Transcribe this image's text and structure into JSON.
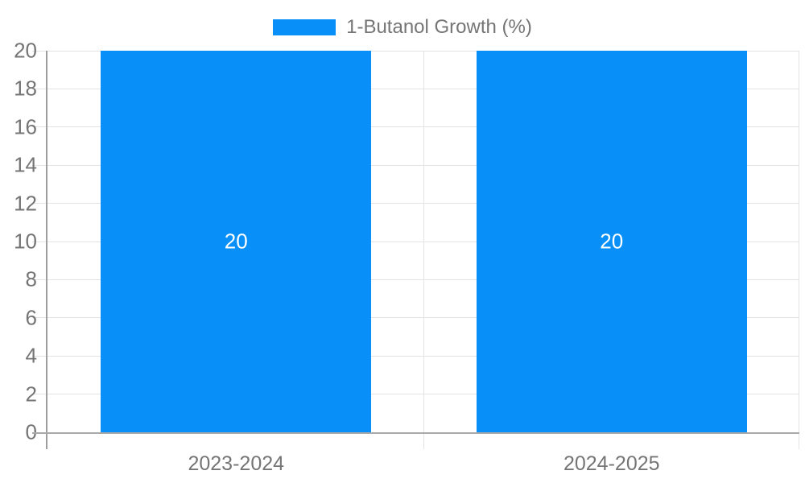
{
  "chart_data": {
    "type": "bar",
    "title": "",
    "legend": {
      "label": "1-Butanol Growth (%)",
      "position": "top-center"
    },
    "categories": [
      "2023-2024",
      "2024-2025"
    ],
    "series": [
      {
        "name": "1-Butanol Growth (%)",
        "color": "#0890F8",
        "values": [
          20,
          20
        ]
      }
    ],
    "bar_value_labels": [
      "20",
      "20"
    ],
    "xlabel": "",
    "ylabel": "",
    "ylim": [
      0,
      20
    ],
    "ytick_step": 2,
    "ytick_labels": [
      "0",
      "2",
      "4",
      "6",
      "8",
      "10",
      "12",
      "14",
      "16",
      "18",
      "20"
    ],
    "grid": true,
    "legend_entries": [
      "1-Butanol Growth (%)"
    ]
  },
  "colors": {
    "bar": "#0890F8",
    "grid_line": "#e3e3e3",
    "axis_line": "#9e9e9e",
    "baseline": "#a9a9a9",
    "label_text": "#757575",
    "bar_label_text": "#ffffff",
    "background": "#ffffff"
  }
}
